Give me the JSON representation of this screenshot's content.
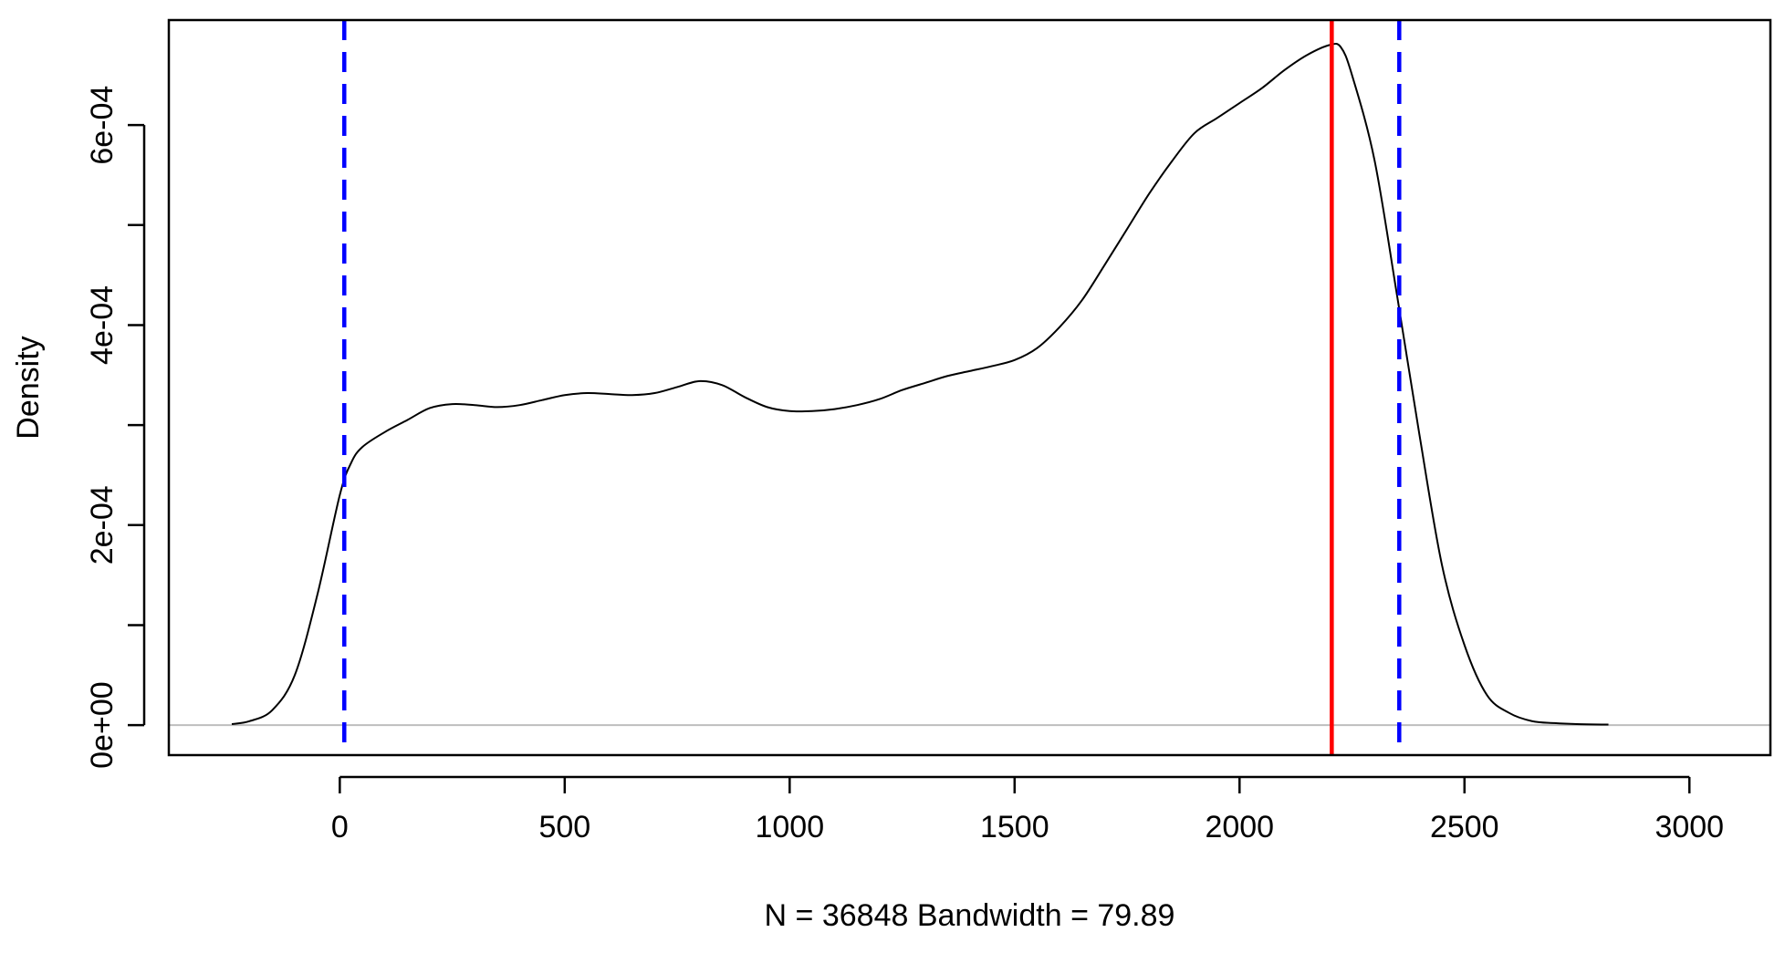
{
  "chart_data": {
    "type": "line",
    "title": "",
    "xlabel": "N = 36848   Bandwidth = 79.89",
    "ylabel": "Density",
    "xlim": [
      -380,
      3180
    ],
    "ylim": [
      -3e-05,
      0.000705
    ],
    "x_ticks": [
      0,
      500,
      1000,
      1500,
      2000,
      2500,
      3000
    ],
    "x_tick_labels": [
      "0",
      "500",
      "1000",
      "1500",
      "2000",
      "2500",
      "3000"
    ],
    "y_ticks": [
      0,
      0.0001,
      0.0002,
      0.0003,
      0.0004,
      0.0005,
      0.0006
    ],
    "y_tick_labels": [
      "0e+00",
      "",
      "2e-04",
      "",
      "4e-04",
      "",
      "6e-04"
    ],
    "grid": false,
    "legend": "none",
    "series": [
      {
        "color": "#000000",
        "x": [
          -240,
          -200,
          -150,
          -100,
          -50,
          0,
          25,
          50,
          100,
          150,
          200,
          250,
          300,
          350,
          400,
          450,
          500,
          550,
          600,
          650,
          700,
          750,
          800,
          850,
          900,
          950,
          1000,
          1050,
          1100,
          1150,
          1200,
          1250,
          1300,
          1350,
          1400,
          1450,
          1500,
          1550,
          1600,
          1650,
          1700,
          1750,
          1800,
          1850,
          1900,
          1950,
          2000,
          2050,
          2100,
          2150,
          2200,
          2225,
          2250,
          2300,
          2350,
          2400,
          2450,
          2500,
          2550,
          2600,
          2650,
          2700,
          2750,
          2820
        ],
        "y": [
          1e-06,
          4e-06,
          1.5e-05,
          5e-05,
          0.00013,
          0.00023,
          0.000262,
          0.000278,
          0.000293,
          0.000305,
          0.000317,
          0.000321,
          0.00032,
          0.000318,
          0.00032,
          0.000325,
          0.00033,
          0.000332,
          0.000331,
          0.00033,
          0.000332,
          0.000338,
          0.000344,
          0.00034,
          0.000328,
          0.000318,
          0.000314,
          0.000314,
          0.000316,
          0.00032,
          0.000326,
          0.000335,
          0.000342,
          0.000349,
          0.000354,
          0.000359,
          0.000365,
          0.000377,
          0.000398,
          0.000425,
          0.00046,
          0.000496,
          0.000532,
          0.000564,
          0.000592,
          0.000607,
          0.000622,
          0.000637,
          0.000655,
          0.00067,
          0.00068,
          0.000678,
          0.00065,
          0.000565,
          0.00043,
          0.00029,
          0.00016,
          8e-05,
          3e-05,
          1.2e-05,
          4e-06,
          2e-06,
          1e-06,
          5e-07
        ]
      }
    ],
    "vlines": [
      {
        "x": 10,
        "color": "#0000ff",
        "style": "dashed"
      },
      {
        "x": 2205,
        "color": "#ff0000",
        "style": "solid"
      },
      {
        "x": 2355,
        "color": "#0000ff",
        "style": "dashed"
      }
    ],
    "hlines": [
      {
        "y": 0,
        "color": "#bebebe",
        "style": "solid"
      }
    ]
  }
}
